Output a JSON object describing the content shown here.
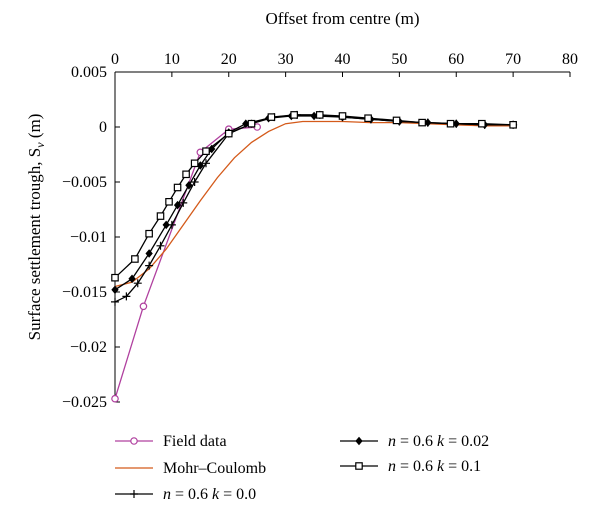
{
  "chart_data": {
    "type": "line",
    "title": "",
    "xlabel": "Offset from centre (m)",
    "ylabel": "Surface settlement trough, S",
    "ylabel_subscript": "v",
    "ylabel_unit": " (m)",
    "xlim": [
      0,
      80
    ],
    "ylim": [
      -0.025,
      0.005
    ],
    "x_ticks": [
      "0",
      "10",
      "20",
      "30",
      "40",
      "50",
      "60",
      "70",
      "80"
    ],
    "y_ticks": [
      "0.005",
      "0",
      "−0.005",
      "−0.01",
      "−0.015",
      "−0.02",
      "−0.025"
    ],
    "x_axis_position": "top",
    "grid": false,
    "legend_position": "bottom",
    "series": [
      {
        "name": "Field data",
        "color": "#b0409f",
        "marker": "circle",
        "x": [
          0,
          5,
          15,
          20,
          25
        ],
        "y": [
          -0.0247,
          -0.0163,
          -0.0023,
          -0.0002,
          0.0
        ]
      },
      {
        "name": "Mohr–Coulomb",
        "color": "#d45a1a",
        "marker": "none",
        "x": [
          0,
          3,
          6,
          9,
          12,
          15,
          18,
          21,
          24,
          27,
          30,
          33,
          36,
          40,
          45,
          50,
          55,
          60,
          65,
          70
        ],
        "y": [
          -0.0145,
          -0.0141,
          -0.0129,
          -0.0111,
          -0.0089,
          -0.0067,
          -0.0046,
          -0.0028,
          -0.0014,
          -0.0004,
          0.0003,
          0.0005,
          0.0005,
          0.0005,
          0.0004,
          0.0004,
          0.0003,
          0.0002,
          0.0001,
          0.0001
        ]
      },
      {
        "name": "n = 0.6 k = 0.0",
        "color": "#000000",
        "marker": "plus",
        "x": [
          0,
          2,
          4,
          6,
          8,
          10,
          12,
          14,
          16,
          20,
          24,
          28,
          32,
          36,
          40,
          45,
          50,
          55,
          60,
          65,
          70
        ],
        "y": [
          -0.0159,
          -0.0154,
          -0.0142,
          -0.0126,
          -0.0108,
          -0.0089,
          -0.0069,
          -0.005,
          -0.0033,
          -0.0006,
          0.0003,
          0.0009,
          0.0011,
          0.0011,
          0.0009,
          0.0007,
          0.0005,
          0.0004,
          0.0003,
          0.0002,
          0.0002
        ]
      },
      {
        "name": "n = 0.6 k = 0.02",
        "color": "#000000",
        "marker": "diamond",
        "x": [
          0,
          3,
          6,
          9,
          11,
          13,
          15,
          17,
          20,
          23,
          27,
          31,
          35,
          40,
          45,
          50,
          55,
          60,
          65,
          70
        ],
        "y": [
          -0.0148,
          -0.0138,
          -0.0115,
          -0.0089,
          -0.0071,
          -0.0053,
          -0.0035,
          -0.002,
          -0.0005,
          0.0003,
          0.0008,
          0.001,
          0.001,
          0.0009,
          0.0007,
          0.0005,
          0.0004,
          0.0003,
          0.0002,
          0.0002
        ]
      },
      {
        "name": "n = 0.6 k = 0.1",
        "color": "#000000",
        "marker": "square",
        "x": [
          0,
          3.5,
          6,
          8,
          9.5,
          11,
          12.5,
          14,
          16,
          20,
          24,
          27.5,
          31.5,
          36,
          40,
          44.5,
          49.5,
          54,
          59,
          64.5,
          70
        ],
        "y": [
          -0.0137,
          -0.012,
          -0.0097,
          -0.0081,
          -0.0068,
          -0.0055,
          -0.0043,
          -0.0033,
          -0.0022,
          -0.0006,
          0.0003,
          0.0009,
          0.0011,
          0.0011,
          0.001,
          0.0008,
          0.0006,
          0.0004,
          0.0003,
          0.0003,
          0.0002
        ]
      }
    ]
  }
}
